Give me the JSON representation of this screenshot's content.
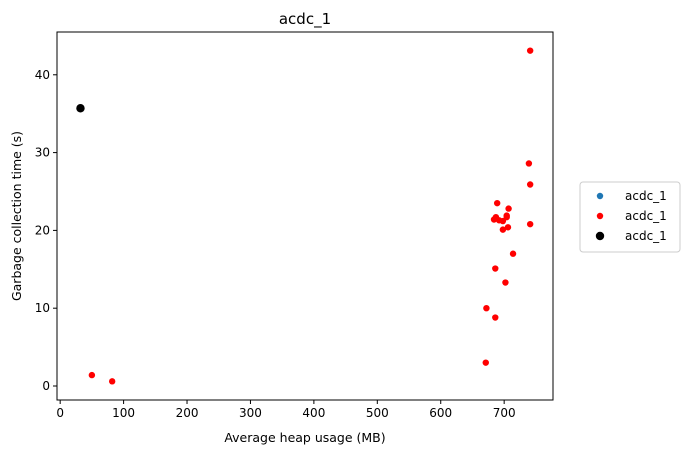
{
  "chart_data": {
    "type": "scatter",
    "title": "acdc_1",
    "xlabel": "Average heap usage (MB)",
    "ylabel": "Garbage collection time (s)",
    "xlim": [
      -5,
      777
    ],
    "ylim": [
      -1.8,
      45.5
    ],
    "xticks": [
      0,
      100,
      200,
      300,
      400,
      500,
      600,
      700
    ],
    "yticks": [
      0,
      10,
      20,
      30,
      40
    ],
    "grid": false,
    "legend_position": "right",
    "series": [
      {
        "name": "acdc_1",
        "color": "#1f77b4",
        "marker_size": "small",
        "points": []
      },
      {
        "name": "acdc_1",
        "color": "#ff0000",
        "marker_size": "small",
        "points": [
          {
            "x": 741,
            "y": 43.1
          },
          {
            "x": 739,
            "y": 28.6
          },
          {
            "x": 741,
            "y": 25.9
          },
          {
            "x": 689,
            "y": 23.5
          },
          {
            "x": 707,
            "y": 22.8
          },
          {
            "x": 687,
            "y": 21.7
          },
          {
            "x": 684,
            "y": 21.4
          },
          {
            "x": 692,
            "y": 21.3
          },
          {
            "x": 698,
            "y": 21.2
          },
          {
            "x": 704,
            "y": 21.7
          },
          {
            "x": 704,
            "y": 21.9
          },
          {
            "x": 741,
            "y": 20.8
          },
          {
            "x": 706,
            "y": 20.4
          },
          {
            "x": 698,
            "y": 20.1
          },
          {
            "x": 714,
            "y": 17.0
          },
          {
            "x": 686,
            "y": 15.1
          },
          {
            "x": 702,
            "y": 13.3
          },
          {
            "x": 672,
            "y": 10.0
          },
          {
            "x": 686,
            "y": 8.8
          },
          {
            "x": 671,
            "y": 3.0
          },
          {
            "x": 50,
            "y": 1.4
          },
          {
            "x": 82,
            "y": 0.6
          }
        ]
      },
      {
        "name": "acdc_1",
        "color": "#000000",
        "marker_size": "large",
        "points": [
          {
            "x": 32,
            "y": 35.7
          }
        ]
      }
    ]
  }
}
